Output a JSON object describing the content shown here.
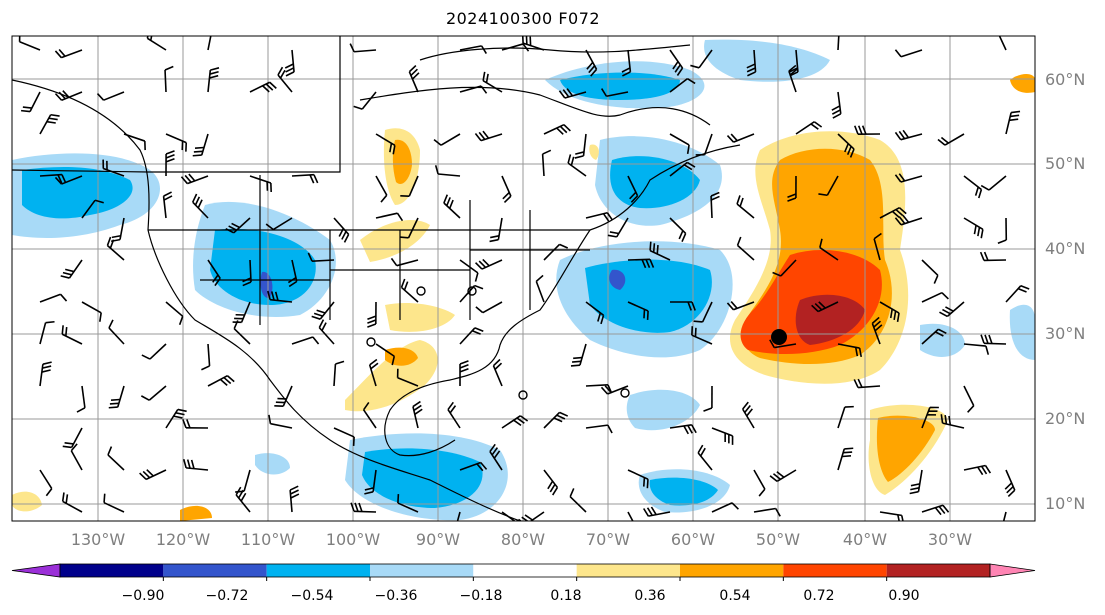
{
  "title": "2024100300 F072",
  "map": {
    "lon_labels": [
      "130°W",
      "120°W",
      "110°W",
      "100°W",
      "90°W",
      "80°W",
      "70°W",
      "60°W",
      "50°W",
      "40°W",
      "30°W"
    ],
    "lat_labels": [
      "60°N",
      "50°N",
      "40°N",
      "30°N",
      "20°N",
      "10°N"
    ],
    "shading": "anomaly-contour-fill",
    "storm_marker": "black-dot-near-50W-30N",
    "wind_barbs": "black",
    "gridlines": true
  },
  "colorbar": {
    "ticks": [
      "−0.90",
      "−0.72",
      "−0.54",
      "−0.36",
      "−0.18",
      "0.18",
      "0.36",
      "0.54",
      "0.72",
      "0.90"
    ],
    "colors": [
      "#9b30d8",
      "#00008b",
      "#3355cc",
      "#00b2f0",
      "#a8daf7",
      "#ffffff",
      "#fde68c",
      "#ffa500",
      "#ff4500",
      "#b22222",
      "#ff85b4"
    ]
  }
}
